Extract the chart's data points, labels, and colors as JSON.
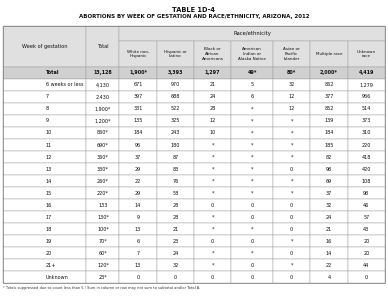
{
  "title1": "TABLE 1D-4",
  "title2": "ABORTIONS BY WEEK OF GESTATION AND RACE/ETHNICITY, ARIZONA, 2012",
  "rows": [
    [
      "Total",
      "13,128",
      "1,900*",
      "3,393",
      "1,297",
      "49*",
      "80*",
      "2,000*",
      "4,419"
    ],
    [
      "6 weeks or less",
      "4,130",
      "671",
      "970",
      "21",
      "5",
      "32",
      "862",
      "1,279"
    ],
    [
      "7",
      "2,430",
      "397",
      "688",
      "24",
      "6",
      "12",
      "377",
      "966"
    ],
    [
      "8",
      "1,900*",
      "331",
      "522",
      "28",
      "*",
      "12",
      "852",
      "514"
    ],
    [
      "9",
      "1,200*",
      "135",
      "325",
      "12",
      "*",
      "*",
      "139",
      "373"
    ],
    [
      "10",
      "860*",
      "184",
      "243",
      "10",
      "*",
      "*",
      "184",
      "310"
    ],
    [
      "11",
      "690*",
      "96",
      "180",
      "*",
      "*",
      "*",
      "185",
      "220"
    ],
    [
      "12",
      "360*",
      "37",
      "87",
      "*",
      "*",
      "*",
      "82",
      "418"
    ],
    [
      "13",
      "330*",
      "29",
      "83",
      "*",
      "*",
      "0",
      "98",
      "420"
    ],
    [
      "14",
      "260*",
      "22",
      "76",
      "*",
      "*",
      "*",
      "69",
      "108"
    ],
    [
      "15",
      "220*",
      "29",
      "58",
      "*",
      "*",
      "*",
      "37",
      "98"
    ],
    [
      "16",
      "133",
      "14",
      "28",
      "0",
      "0",
      "0",
      "32",
      "46"
    ],
    [
      "17",
      "130*",
      "9",
      "28",
      "*",
      "0",
      "0",
      "24",
      "57"
    ],
    [
      "18",
      "100*",
      "13",
      "21",
      "*",
      "*",
      "0",
      "21",
      "43"
    ],
    [
      "19",
      "70*",
      "6",
      "23",
      "0",
      "0",
      "*",
      "16",
      "20"
    ],
    [
      "20",
      "60*",
      "7",
      "24",
      "*",
      "*",
      "0",
      "14",
      "20"
    ],
    [
      "21+",
      "120*",
      "13",
      "32",
      "*",
      "0",
      "*",
      "22",
      "44"
    ],
    [
      "Unknown",
      "23*",
      "0",
      "0",
      "0",
      "0",
      "0",
      "4",
      "0"
    ]
  ],
  "footnote": "* Totals suppressed due to count less than 5 / Sum in column or row may not sum to subtotal and/or Total A.",
  "col_widths_rel": [
    1.9,
    0.75,
    0.85,
    0.85,
    0.85,
    0.95,
    0.85,
    0.85,
    0.85
  ]
}
